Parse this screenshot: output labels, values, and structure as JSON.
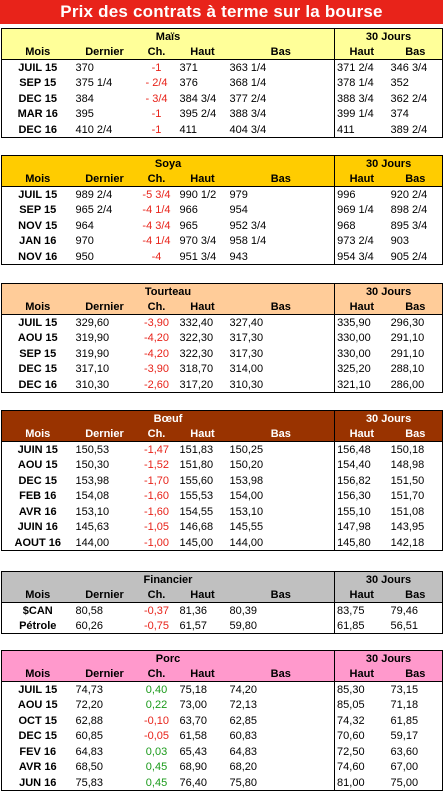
{
  "title": "Prix des contrats à terme sur la bourse",
  "col_headers": {
    "mois": "Mois",
    "dernier": "Dernier",
    "ch": "Ch.",
    "haut": "Haut",
    "bas": "Bas",
    "jours30": "30 Jours",
    "haut30": "Haut",
    "bas30": "Bas"
  },
  "sections": [
    {
      "name": "Maïs",
      "color": "#ffff99",
      "rows": [
        {
          "mois": "JUIL 15",
          "dernier": "370",
          "ch": "-1",
          "haut": "371",
          "bas": "363 1/4",
          "haut30": "371 2/4",
          "bas30": "346 3/4"
        },
        {
          "mois": "SEP 15",
          "dernier": "375 1/4",
          "ch": "- 2/4",
          "haut": "376",
          "bas": "368 1/4",
          "haut30": "378 1/4",
          "bas30": "352"
        },
        {
          "mois": "DEC 15",
          "dernier": "384",
          "ch": "- 3/4",
          "haut": "384 3/4",
          "bas": "377 2/4",
          "haut30": "388 3/4",
          "bas30": "362 2/4"
        },
        {
          "mois": "MAR 16",
          "dernier": "395",
          "ch": "-1",
          "haut": "395 2/4",
          "bas": "388 3/4",
          "haut30": "399 1/4",
          "bas30": "374"
        },
        {
          "mois": "DEC 16",
          "dernier": "410 2/4",
          "ch": "-1",
          "haut": "411",
          "bas": "404 3/4",
          "haut30": "411",
          "bas30": "389 2/4"
        }
      ]
    },
    {
      "name": "Soya",
      "color": "#ffcc00",
      "rows": [
        {
          "mois": "JUIL 15",
          "dernier": "989 2/4",
          "ch": "-5 3/4",
          "haut": "990 1/2",
          "bas": "979",
          "haut30": "996",
          "bas30": "920 2/4"
        },
        {
          "mois": "SEP 15",
          "dernier": "965 2/4",
          "ch": "-4 1/4",
          "haut": "966",
          "bas": "954",
          "haut30": "969 1/4",
          "bas30": "898 2/4"
        },
        {
          "mois": "NOV 15",
          "dernier": "964",
          "ch": "-4 3/4",
          "haut": "965",
          "bas": "952 3/4",
          "haut30": "968",
          "bas30": "895 3/4"
        },
        {
          "mois": "JAN 16",
          "dernier": "970",
          "ch": "-4 1/4",
          "haut": "970 3/4",
          "bas": "958 1/4",
          "haut30": "973 2/4",
          "bas30": "903"
        },
        {
          "mois": "NOV 16",
          "dernier": "950",
          "ch": "-4",
          "haut": "951 3/4",
          "bas": "943",
          "haut30": "954 3/4",
          "bas30": "905 2/4"
        }
      ]
    },
    {
      "name": "Tourteau",
      "color": "#ffcc99",
      "rows": [
        {
          "mois": "JUIL 15",
          "dernier": "329,60",
          "ch": "-3,90",
          "haut": "332,40",
          "bas": "327,40",
          "haut30": "335,90",
          "bas30": "296,30"
        },
        {
          "mois": "AOU 15",
          "dernier": "319,90",
          "ch": "-4,20",
          "haut": "322,30",
          "bas": "317,30",
          "haut30": "330,00",
          "bas30": "291,10"
        },
        {
          "mois": "SEP 15",
          "dernier": "319,90",
          "ch": "-4,20",
          "haut": "322,30",
          "bas": "317,30",
          "haut30": "330,00",
          "bas30": "291,10"
        },
        {
          "mois": "DEC 15",
          "dernier": "317,10",
          "ch": "-3,90",
          "haut": "318,70",
          "bas": "314,00",
          "haut30": "325,20",
          "bas30": "288,10"
        },
        {
          "mois": "DEC 16",
          "dernier": "310,30",
          "ch": "-2,60",
          "haut": "317,20",
          "bas": "310,30",
          "haut30": "321,10",
          "bas30": "286,00"
        }
      ]
    },
    {
      "name": "Bœuf",
      "color": "#993300",
      "rows": [
        {
          "mois": "JUIN 15",
          "dernier": "150,53",
          "ch": "-1,47",
          "haut": "151,83",
          "bas": "150,25",
          "haut30": "156,48",
          "bas30": "150,18"
        },
        {
          "mois": "AOU 15",
          "dernier": "150,30",
          "ch": "-1,52",
          "haut": "151,80",
          "bas": "150,20",
          "haut30": "154,40",
          "bas30": "148,98"
        },
        {
          "mois": "DEC 15",
          "dernier": "153,98",
          "ch": "-1,70",
          "haut": "155,60",
          "bas": "153,98",
          "haut30": "156,82",
          "bas30": "151,50"
        },
        {
          "mois": "FEB 16",
          "dernier": "154,08",
          "ch": "-1,60",
          "haut": "155,53",
          "bas": "154,00",
          "haut30": "156,30",
          "bas30": "151,70"
        },
        {
          "mois": "AVR 16",
          "dernier": "153,10",
          "ch": "-1,60",
          "haut": "154,55",
          "bas": "153,10",
          "haut30": "155,10",
          "bas30": "151,08"
        },
        {
          "mois": "JUIN 16",
          "dernier": "145,63",
          "ch": "-1,05",
          "haut": "146,68",
          "bas": "145,55",
          "haut30": "147,98",
          "bas30": "143,95"
        },
        {
          "mois": "AOUT 16",
          "dernier": "144,00",
          "ch": "-1,00",
          "haut": "145,00",
          "bas": "144,00",
          "haut30": "145,80",
          "bas30": "142,18"
        }
      ]
    },
    {
      "name": "Financier",
      "color": "#c0c0c0",
      "rows": [
        {
          "mois": "$CAN",
          "dernier": "80,58",
          "ch": "-0,37",
          "haut": "81,36",
          "bas": "80,39",
          "haut30": "83,75",
          "bas30": "79,46"
        },
        {
          "mois": "Pétrole",
          "dernier": "60,26",
          "ch": "-0,75",
          "haut": "61,57",
          "bas": "59,80",
          "haut30": "61,85",
          "bas30": "56,51"
        }
      ]
    },
    {
      "name": "Porc",
      "color": "#ff99cc",
      "rows": [
        {
          "mois": "JUIL 15",
          "dernier": "74,73",
          "ch": "0,40",
          "haut": "75,18",
          "bas": "74,20",
          "haut30": "85,30",
          "bas30": "73,15"
        },
        {
          "mois": "AOU 15",
          "dernier": "72,20",
          "ch": "0,22",
          "haut": "73,00",
          "bas": "72,13",
          "haut30": "85,05",
          "bas30": "71,18"
        },
        {
          "mois": "OCT 15",
          "dernier": "62,88",
          "ch": "-0,10",
          "haut": "63,70",
          "bas": "62,85",
          "haut30": "74,32",
          "bas30": "61,85"
        },
        {
          "mois": "DEC 15",
          "dernier": "60,85",
          "ch": "-0,05",
          "haut": "61,58",
          "bas": "60,83",
          "haut30": "70,60",
          "bas30": "59,17"
        },
        {
          "mois": "FEV 16",
          "dernier": "64,83",
          "ch": "0,03",
          "haut": "65,43",
          "bas": "64,83",
          "haut30": "72,50",
          "bas30": "63,60"
        },
        {
          "mois": "AVR 16",
          "dernier": "68,50",
          "ch": "0,45",
          "haut": "68,90",
          "bas": "68,20",
          "haut30": "74,60",
          "bas30": "67,00"
        },
        {
          "mois": "JUN 16",
          "dernier": "75,83",
          "ch": "0,45",
          "haut": "76,40",
          "bas": "75,80",
          "haut30": "81,00",
          "bas30": "75,00"
        }
      ]
    }
  ]
}
